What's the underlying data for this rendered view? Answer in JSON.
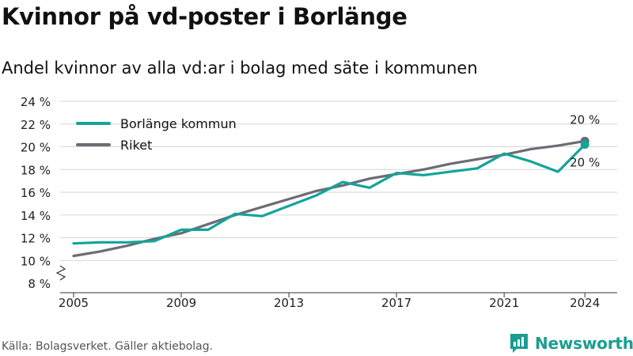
{
  "header": {
    "title": "Kvinnor på vd-poster i Borlänge",
    "subtitle": "Andel kvinnor av alla vd:ar i bolag med säte i kommunen"
  },
  "footer": {
    "source": "Källa: Bolagsverket. Gäller aktiebolag.",
    "brand": "Newsworthy"
  },
  "colors": {
    "borlange": "#13a49a",
    "riket": "#6d6b73",
    "grid": "#d6d6d6"
  },
  "chart_data": {
    "type": "line",
    "ylim": [
      8,
      24
    ],
    "yticks": [
      8,
      10,
      12,
      14,
      16,
      18,
      20,
      22,
      24
    ],
    "ytick_suffix": " %",
    "xlim": [
      2004.5,
      2025.2
    ],
    "xticks": [
      2005,
      2009,
      2013,
      2017,
      2021,
      2024
    ],
    "legend_position": "top-left",
    "series": [
      {
        "name": "Borlänge kommun",
        "color": "#13a49a",
        "x": [
          2005,
          2006,
          2007,
          2008,
          2009,
          2010,
          2011,
          2012,
          2013,
          2014,
          2015,
          2016,
          2017,
          2018,
          2019,
          2020,
          2021,
          2022,
          2023,
          2024
        ],
        "y": [
          11.5,
          11.6,
          11.6,
          11.7,
          12.7,
          12.7,
          14.1,
          13.9,
          14.8,
          15.7,
          16.9,
          16.4,
          17.7,
          17.5,
          17.8,
          18.1,
          19.4,
          18.7,
          17.8,
          20.2
        ],
        "end_label": "20 %"
      },
      {
        "name": "Riket",
        "color": "#6d6b73",
        "x": [
          2005,
          2006,
          2007,
          2008,
          2009,
          2010,
          2011,
          2012,
          2013,
          2014,
          2015,
          2016,
          2017,
          2018,
          2019,
          2020,
          2021,
          2022,
          2023,
          2024
        ],
        "y": [
          10.4,
          10.8,
          11.3,
          11.9,
          12.4,
          13.2,
          14.0,
          14.7,
          15.4,
          16.1,
          16.6,
          17.2,
          17.6,
          18.0,
          18.5,
          18.9,
          19.3,
          19.8,
          20.1,
          20.5
        ],
        "end_label": "20 %"
      }
    ]
  }
}
